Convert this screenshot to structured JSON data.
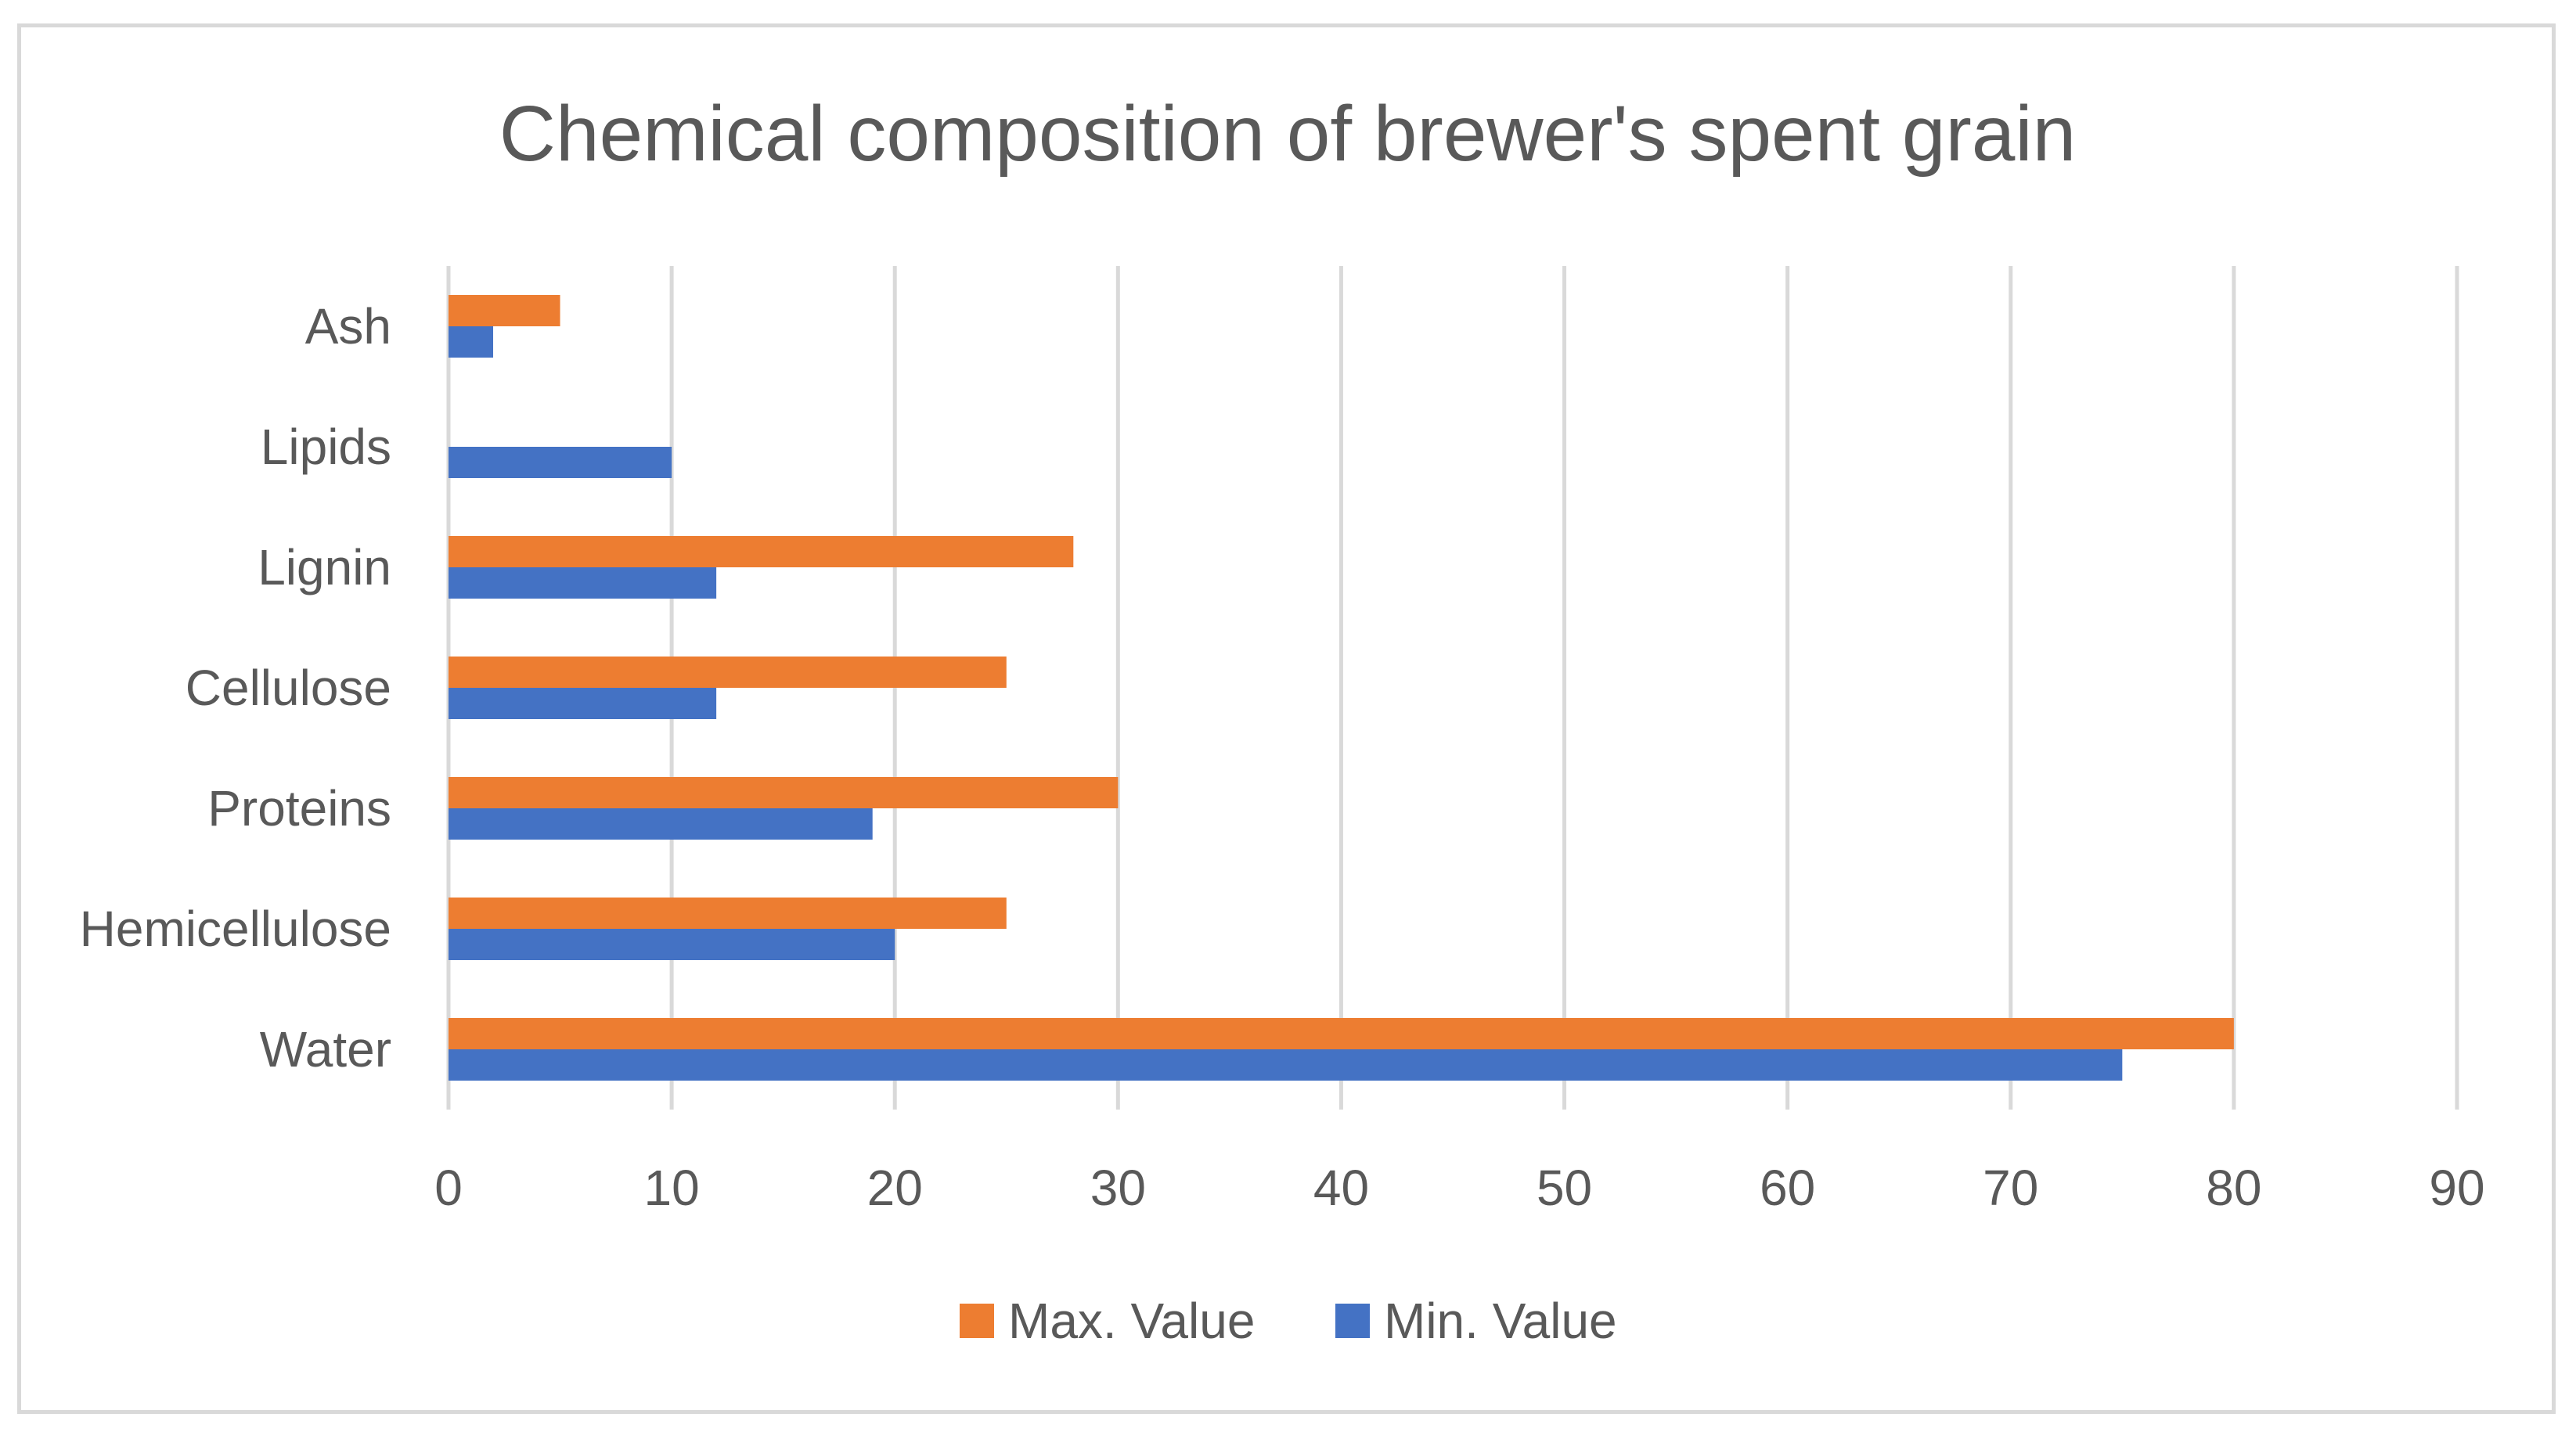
{
  "chart_data": {
    "type": "bar",
    "orientation": "horizontal",
    "title": "Chemical composition of brewer's spent grain",
    "xlabel": "",
    "ylabel": "",
    "categories": [
      "Water",
      "Hemicellulose",
      "Proteins",
      "Cellulose",
      "Lignin",
      "Lipids",
      "Ash"
    ],
    "series": [
      {
        "name": "Min. Value",
        "color": "#4472c4",
        "values": [
          75,
          20,
          19,
          12,
          12,
          10,
          2
        ]
      },
      {
        "name": "Max. Value",
        "color": "#ed7d31",
        "values": [
          80,
          25,
          30,
          25,
          28,
          null,
          5
        ]
      }
    ],
    "xlim": [
      0,
      90
    ],
    "xticks": [
      "0",
      "10",
      "20",
      "30",
      "40",
      "50",
      "60",
      "70",
      "80",
      "90"
    ],
    "grid": "vertical",
    "legend": "bottom-center",
    "legend_order": [
      "Max. Value",
      "Min. Value"
    ]
  }
}
